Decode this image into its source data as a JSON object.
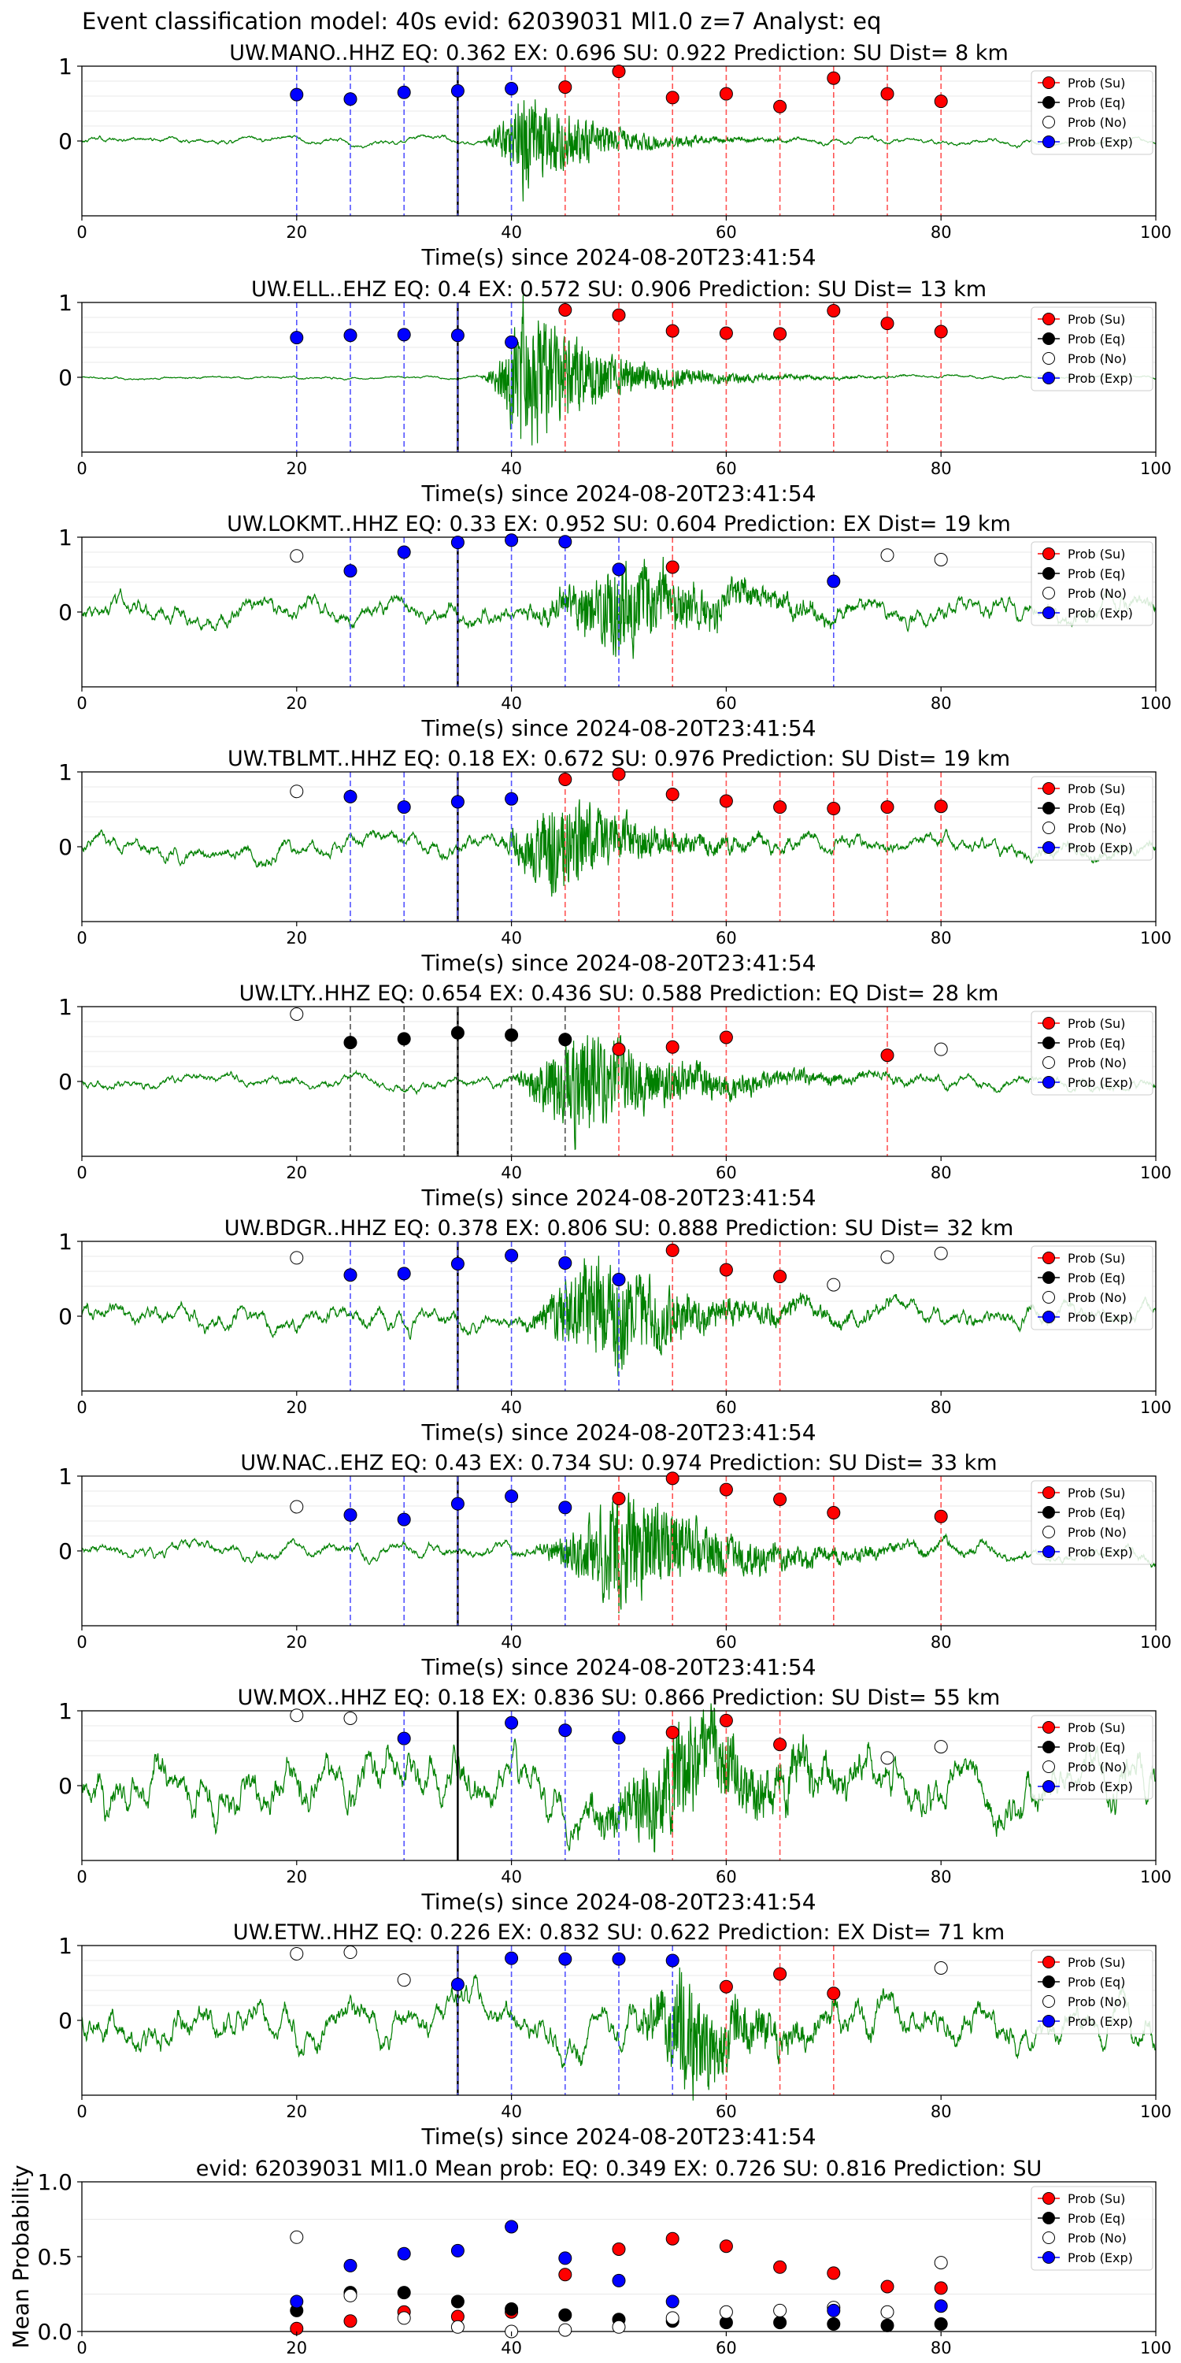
{
  "figure": {
    "suptitle": "Event classification model: 40s evid: 62039031 Ml1.0 z=7 Analyst: eq",
    "colors": {
      "su": "#ff0000",
      "eq": "#000000",
      "no": "#ffffff",
      "exp": "#0000ff",
      "trace": "#008000",
      "su_line": "#ff5555",
      "exp_line": "#5555ff",
      "eq_line": "#555555",
      "origin_line": "#000000"
    }
  },
  "chart_data": [
    {
      "type": "scatter",
      "title": "UW.MANO..HHZ   EQ: 0.362  EX: 0.696  SU: 0.922   Prediction: SU    Dist= 8 km",
      "xlabel": "Time(s) since 2024-08-20T23:41:54",
      "xlim": [
        0,
        100
      ],
      "ylim": [
        -1,
        1
      ],
      "xticks": [
        0,
        20,
        40,
        60,
        80,
        100
      ],
      "yticks": [
        0,
        1
      ],
      "origin_time": 35,
      "legend": [
        "Prob (Su)",
        "Prob (Eq)",
        "Prob (No)",
        "Prob (Exp)"
      ],
      "legend_position": "upper right",
      "waveform": {
        "onset": 37,
        "peak": 41,
        "peak_amp": 0.85,
        "decay": 6,
        "noise": 0.03,
        "coda_until": 60
      },
      "points": [
        {
          "x": 20,
          "y": 0.62,
          "class": "exp"
        },
        {
          "x": 25,
          "y": 0.56,
          "class": "exp"
        },
        {
          "x": 30,
          "y": 0.65,
          "class": "exp"
        },
        {
          "x": 35,
          "y": 0.67,
          "class": "exp"
        },
        {
          "x": 40,
          "y": 0.7,
          "class": "exp"
        },
        {
          "x": 45,
          "y": 0.72,
          "class": "su"
        },
        {
          "x": 50,
          "y": 0.93,
          "class": "su"
        },
        {
          "x": 55,
          "y": 0.58,
          "class": "su"
        },
        {
          "x": 60,
          "y": 0.63,
          "class": "su"
        },
        {
          "x": 65,
          "y": 0.46,
          "class": "su"
        },
        {
          "x": 70,
          "y": 0.84,
          "class": "su"
        },
        {
          "x": 75,
          "y": 0.63,
          "class": "su"
        },
        {
          "x": 80,
          "y": 0.53,
          "class": "su"
        }
      ]
    },
    {
      "type": "scatter",
      "title": "UW.ELL..EHZ   EQ: 0.4  EX: 0.572  SU: 0.906   Prediction: SU    Dist= 13 km",
      "xlabel": "Time(s) since 2024-08-20T23:41:54",
      "xlim": [
        0,
        100
      ],
      "ylim": [
        -1,
        1
      ],
      "xticks": [
        0,
        20,
        40,
        60,
        80,
        100
      ],
      "yticks": [
        0,
        1
      ],
      "origin_time": 35,
      "legend": [
        "Prob (Su)",
        "Prob (Eq)",
        "Prob (No)",
        "Prob (Exp)"
      ],
      "legend_position": "upper right",
      "waveform": {
        "onset": 37,
        "peak": 41,
        "peak_amp": 1.2,
        "decay": 7,
        "noise": 0.015,
        "coda_until": 68
      },
      "points": [
        {
          "x": 20,
          "y": 0.53,
          "class": "exp"
        },
        {
          "x": 25,
          "y": 0.56,
          "class": "exp"
        },
        {
          "x": 30,
          "y": 0.57,
          "class": "exp"
        },
        {
          "x": 35,
          "y": 0.56,
          "class": "exp"
        },
        {
          "x": 40,
          "y": 0.47,
          "class": "exp"
        },
        {
          "x": 45,
          "y": 0.9,
          "class": "su"
        },
        {
          "x": 50,
          "y": 0.83,
          "class": "su"
        },
        {
          "x": 55,
          "y": 0.62,
          "class": "su"
        },
        {
          "x": 60,
          "y": 0.59,
          "class": "su"
        },
        {
          "x": 65,
          "y": 0.58,
          "class": "su"
        },
        {
          "x": 70,
          "y": 0.89,
          "class": "su"
        },
        {
          "x": 75,
          "y": 0.72,
          "class": "su"
        },
        {
          "x": 80,
          "y": 0.61,
          "class": "su"
        }
      ]
    },
    {
      "type": "scatter",
      "title": "UW.LOKMT..HHZ   EQ: 0.33  EX: 0.952  SU: 0.604   Prediction: EX    Dist= 19 km",
      "xlabel": "Time(s) since 2024-08-20T23:41:54",
      "xlim": [
        0,
        100
      ],
      "ylim": [
        -1,
        1
      ],
      "xticks": [
        0,
        20,
        40,
        60,
        80,
        100
      ],
      "yticks": [
        0,
        1
      ],
      "origin_time": 35,
      "legend": [
        "Prob (Su)",
        "Prob (Eq)",
        "Prob (No)",
        "Prob (Exp)"
      ],
      "legend_position": "upper right",
      "waveform": {
        "onset": 40,
        "peak": 50,
        "peak_amp": 0.75,
        "decay": 8,
        "noise": 0.12,
        "coda_until": 58
      },
      "points": [
        {
          "x": 20,
          "y": 0.75,
          "class": "no"
        },
        {
          "x": 25,
          "y": 0.55,
          "class": "exp"
        },
        {
          "x": 30,
          "y": 0.8,
          "class": "exp"
        },
        {
          "x": 35,
          "y": 0.93,
          "class": "exp"
        },
        {
          "x": 40,
          "y": 0.96,
          "class": "exp"
        },
        {
          "x": 45,
          "y": 0.94,
          "class": "exp"
        },
        {
          "x": 50,
          "y": 0.57,
          "class": "exp"
        },
        {
          "x": 55,
          "y": 0.6,
          "class": "su"
        },
        {
          "x": 70,
          "y": 0.41,
          "class": "exp"
        },
        {
          "x": 75,
          "y": 0.76,
          "class": "no"
        },
        {
          "x": 80,
          "y": 0.7,
          "class": "no"
        }
      ]
    },
    {
      "type": "scatter",
      "title": "UW.TBLMT..HHZ   EQ: 0.18  EX: 0.672  SU: 0.976   Prediction: SU    Dist= 19 km",
      "xlabel": "Time(s) since 2024-08-20T23:41:54",
      "xlim": [
        0,
        100
      ],
      "ylim": [
        -1,
        1
      ],
      "xticks": [
        0,
        20,
        40,
        60,
        80,
        100
      ],
      "yticks": [
        0,
        1
      ],
      "origin_time": 35,
      "legend": [
        "Prob (Su)",
        "Prob (Eq)",
        "Prob (No)",
        "Prob (Exp)"
      ],
      "legend_position": "upper right",
      "waveform": {
        "onset": 38,
        "peak": 44,
        "peak_amp": 0.85,
        "decay": 7,
        "noise": 0.1,
        "coda_until": 62
      },
      "points": [
        {
          "x": 20,
          "y": 0.74,
          "class": "no"
        },
        {
          "x": 25,
          "y": 0.67,
          "class": "exp"
        },
        {
          "x": 30,
          "y": 0.53,
          "class": "exp"
        },
        {
          "x": 35,
          "y": 0.6,
          "class": "exp"
        },
        {
          "x": 40,
          "y": 0.64,
          "class": "exp"
        },
        {
          "x": 45,
          "y": 0.9,
          "class": "su"
        },
        {
          "x": 50,
          "y": 0.97,
          "class": "su"
        },
        {
          "x": 55,
          "y": 0.7,
          "class": "su"
        },
        {
          "x": 60,
          "y": 0.61,
          "class": "su"
        },
        {
          "x": 65,
          "y": 0.53,
          "class": "su"
        },
        {
          "x": 70,
          "y": 0.51,
          "class": "su"
        },
        {
          "x": 75,
          "y": 0.53,
          "class": "su"
        },
        {
          "x": 80,
          "y": 0.54,
          "class": "su"
        }
      ]
    },
    {
      "type": "scatter",
      "title": "UW.LTY..HHZ   EQ: 0.654  EX: 0.436  SU: 0.588   Prediction: EQ    Dist= 28 km",
      "xlabel": "Time(s) since 2024-08-20T23:41:54",
      "xlim": [
        0,
        100
      ],
      "ylim": [
        -1,
        1
      ],
      "xticks": [
        0,
        20,
        40,
        60,
        80,
        100
      ],
      "yticks": [
        0,
        1
      ],
      "origin_time": 35,
      "legend": [
        "Prob (Su)",
        "Prob (Eq)",
        "Prob (No)",
        "Prob (Exp)"
      ],
      "legend_position": "upper right",
      "waveform": {
        "onset": 39,
        "peak": 46,
        "peak_amp": 0.9,
        "decay": 9,
        "noise": 0.06,
        "coda_until": 66
      },
      "points": [
        {
          "x": 20,
          "y": 0.9,
          "class": "no"
        },
        {
          "x": 25,
          "y": 0.52,
          "class": "eq"
        },
        {
          "x": 30,
          "y": 0.57,
          "class": "eq"
        },
        {
          "x": 35,
          "y": 0.65,
          "class": "eq"
        },
        {
          "x": 40,
          "y": 0.62,
          "class": "eq"
        },
        {
          "x": 45,
          "y": 0.56,
          "class": "eq"
        },
        {
          "x": 50,
          "y": 0.43,
          "class": "su"
        },
        {
          "x": 55,
          "y": 0.46,
          "class": "su"
        },
        {
          "x": 60,
          "y": 0.59,
          "class": "su"
        },
        {
          "x": 75,
          "y": 0.35,
          "class": "su"
        },
        {
          "x": 80,
          "y": 0.43,
          "class": "no"
        }
      ]
    },
    {
      "type": "scatter",
      "title": "UW.BDGR..HHZ   EQ: 0.378  EX: 0.806  SU: 0.888   Prediction: SU    Dist= 32 km",
      "xlabel": "Time(s) since 2024-08-20T23:41:54",
      "xlim": [
        0,
        100
      ],
      "ylim": [
        -1,
        1
      ],
      "xticks": [
        0,
        20,
        40,
        60,
        80,
        100
      ],
      "yticks": [
        0,
        1
      ],
      "origin_time": 35,
      "legend": [
        "Prob (Su)",
        "Prob (Eq)",
        "Prob (No)",
        "Prob (Exp)"
      ],
      "legend_position": "upper right",
      "waveform": {
        "onset": 40,
        "peak": 48,
        "peak_amp": 0.95,
        "decay": 8,
        "noise": 0.11,
        "coda_until": 62
      },
      "points": [
        {
          "x": 20,
          "y": 0.78,
          "class": "no"
        },
        {
          "x": 25,
          "y": 0.55,
          "class": "exp"
        },
        {
          "x": 30,
          "y": 0.57,
          "class": "exp"
        },
        {
          "x": 35,
          "y": 0.7,
          "class": "exp"
        },
        {
          "x": 40,
          "y": 0.81,
          "class": "exp"
        },
        {
          "x": 45,
          "y": 0.71,
          "class": "exp"
        },
        {
          "x": 50,
          "y": 0.49,
          "class": "exp"
        },
        {
          "x": 55,
          "y": 0.88,
          "class": "su"
        },
        {
          "x": 60,
          "y": 0.62,
          "class": "su"
        },
        {
          "x": 65,
          "y": 0.53,
          "class": "su"
        },
        {
          "x": 70,
          "y": 0.42,
          "class": "no"
        },
        {
          "x": 75,
          "y": 0.79,
          "class": "no"
        },
        {
          "x": 80,
          "y": 0.84,
          "class": "no"
        }
      ]
    },
    {
      "type": "scatter",
      "title": "UW.NAC..EHZ   EQ: 0.43  EX: 0.734  SU: 0.974   Prediction: SU    Dist= 33 km",
      "xlabel": "Time(s) since 2024-08-20T23:41:54",
      "xlim": [
        0,
        100
      ],
      "ylim": [
        -1,
        1
      ],
      "xticks": [
        0,
        20,
        40,
        60,
        80,
        100
      ],
      "yticks": [
        0,
        1
      ],
      "origin_time": 35,
      "legend": [
        "Prob (Su)",
        "Prob (Eq)",
        "Prob (No)",
        "Prob (Exp)"
      ],
      "legend_position": "upper right",
      "waveform": {
        "onset": 41,
        "peak": 50,
        "peak_amp": 0.95,
        "decay": 9,
        "noise": 0.07,
        "coda_until": 72
      },
      "points": [
        {
          "x": 20,
          "y": 0.59,
          "class": "no"
        },
        {
          "x": 25,
          "y": 0.48,
          "class": "exp"
        },
        {
          "x": 30,
          "y": 0.42,
          "class": "exp"
        },
        {
          "x": 35,
          "y": 0.63,
          "class": "exp"
        },
        {
          "x": 40,
          "y": 0.73,
          "class": "exp"
        },
        {
          "x": 45,
          "y": 0.58,
          "class": "exp"
        },
        {
          "x": 50,
          "y": 0.7,
          "class": "su"
        },
        {
          "x": 55,
          "y": 0.97,
          "class": "su"
        },
        {
          "x": 60,
          "y": 0.82,
          "class": "su"
        },
        {
          "x": 65,
          "y": 0.69,
          "class": "su"
        },
        {
          "x": 70,
          "y": 0.51,
          "class": "su"
        },
        {
          "x": 80,
          "y": 0.46,
          "class": "su"
        }
      ]
    },
    {
      "type": "scatter",
      "title": "UW.MOX..HHZ   EQ: 0.18  EX: 0.836  SU: 0.866   Prediction: SU    Dist= 55 km",
      "xlabel": "Time(s) since 2024-08-20T23:41:54",
      "xlim": [
        0,
        100
      ],
      "ylim": [
        -1,
        1
      ],
      "xticks": [
        0,
        20,
        40,
        60,
        80,
        100
      ],
      "yticks": [
        0,
        1
      ],
      "origin_time": 35,
      "legend": [
        "Prob (Su)",
        "Prob (Eq)",
        "Prob (No)",
        "Prob (Exp)"
      ],
      "legend_position": "upper right",
      "waveform": {
        "onset": 44,
        "peak": 55,
        "peak_amp": 0.85,
        "decay": 8,
        "noise": 0.28,
        "coda_until": 66
      },
      "points": [
        {
          "x": 20,
          "y": 0.94,
          "class": "no"
        },
        {
          "x": 25,
          "y": 0.9,
          "class": "no"
        },
        {
          "x": 30,
          "y": 0.63,
          "class": "exp"
        },
        {
          "x": 40,
          "y": 0.84,
          "class": "exp"
        },
        {
          "x": 45,
          "y": 0.74,
          "class": "exp"
        },
        {
          "x": 50,
          "y": 0.64,
          "class": "exp"
        },
        {
          "x": 55,
          "y": 0.71,
          "class": "su"
        },
        {
          "x": 60,
          "y": 0.87,
          "class": "su"
        },
        {
          "x": 65,
          "y": 0.55,
          "class": "su"
        },
        {
          "x": 75,
          "y": 0.37,
          "class": "no"
        },
        {
          "x": 80,
          "y": 0.52,
          "class": "no"
        }
      ]
    },
    {
      "type": "scatter",
      "title": "UW.ETW..HHZ   EQ: 0.226  EX: 0.832  SU: 0.622   Prediction: EX    Dist= 71 km",
      "xlabel": "Time(s) since 2024-08-20T23:41:54",
      "xlim": [
        0,
        100
      ],
      "ylim": [
        -1,
        1
      ],
      "xticks": [
        0,
        20,
        40,
        60,
        80,
        100
      ],
      "yticks": [
        0,
        1
      ],
      "origin_time": 35,
      "legend": [
        "Prob (Su)",
        "Prob (Eq)",
        "Prob (No)",
        "Prob (Exp)"
      ],
      "legend_position": "upper right",
      "waveform": {
        "onset": 50,
        "peak": 56,
        "peak_amp": 0.9,
        "decay": 6,
        "noise": 0.2,
        "coda_until": 66
      },
      "points": [
        {
          "x": 20,
          "y": 0.89,
          "class": "no"
        },
        {
          "x": 25,
          "y": 0.91,
          "class": "no"
        },
        {
          "x": 30,
          "y": 0.54,
          "class": "no"
        },
        {
          "x": 35,
          "y": 0.48,
          "class": "exp"
        },
        {
          "x": 40,
          "y": 0.83,
          "class": "exp"
        },
        {
          "x": 45,
          "y": 0.82,
          "class": "exp"
        },
        {
          "x": 50,
          "y": 0.82,
          "class": "exp"
        },
        {
          "x": 55,
          "y": 0.8,
          "class": "exp"
        },
        {
          "x": 60,
          "y": 0.45,
          "class": "su"
        },
        {
          "x": 65,
          "y": 0.62,
          "class": "su"
        },
        {
          "x": 70,
          "y": 0.36,
          "class": "su"
        },
        {
          "x": 80,
          "y": 0.7,
          "class": "no"
        }
      ]
    },
    {
      "type": "scatter",
      "title": "evid: 62039031  Ml1.0   Mean prob:    EQ: 0.349  EX: 0.726  SU: 0.816   Prediction: SU",
      "xlabel": "",
      "ylabel": "Mean Probability",
      "xlim": [
        0,
        100
      ],
      "ylim": [
        0,
        1
      ],
      "xticks": [
        0,
        20,
        40,
        60,
        80,
        100
      ],
      "yticks": [
        0.0,
        0.5,
        1.0
      ],
      "legend": [
        "Prob (Su)",
        "Prob (Eq)",
        "Prob (No)",
        "Prob (Exp)"
      ],
      "legend_position": "upper right",
      "x": [
        20,
        25,
        30,
        35,
        40,
        45,
        50,
        55,
        60,
        65,
        70,
        75,
        80
      ],
      "series": [
        {
          "name": "Prob (Su)",
          "class": "su",
          "values": [
            0.02,
            0.07,
            0.13,
            0.1,
            0.13,
            0.38,
            0.55,
            0.62,
            0.57,
            0.43,
            0.39,
            0.3,
            0.29
          ]
        },
        {
          "name": "Prob (Eq)",
          "class": "eq",
          "values": [
            0.14,
            0.26,
            0.26,
            0.2,
            0.15,
            0.11,
            0.08,
            0.07,
            0.06,
            0.06,
            0.05,
            0.04,
            0.05
          ]
        },
        {
          "name": "Prob (No)",
          "class": "no",
          "values": [
            0.63,
            0.24,
            0.09,
            0.03,
            0.0,
            0.01,
            0.03,
            0.09,
            0.13,
            0.14,
            0.16,
            0.13,
            0.46
          ]
        },
        {
          "name": "Prob (Exp)",
          "class": "exp",
          "values": [
            0.2,
            0.44,
            0.52,
            0.54,
            0.7,
            0.49,
            0.34,
            0.2,
            null,
            null,
            0.14,
            null,
            0.17
          ]
        }
      ]
    }
  ]
}
